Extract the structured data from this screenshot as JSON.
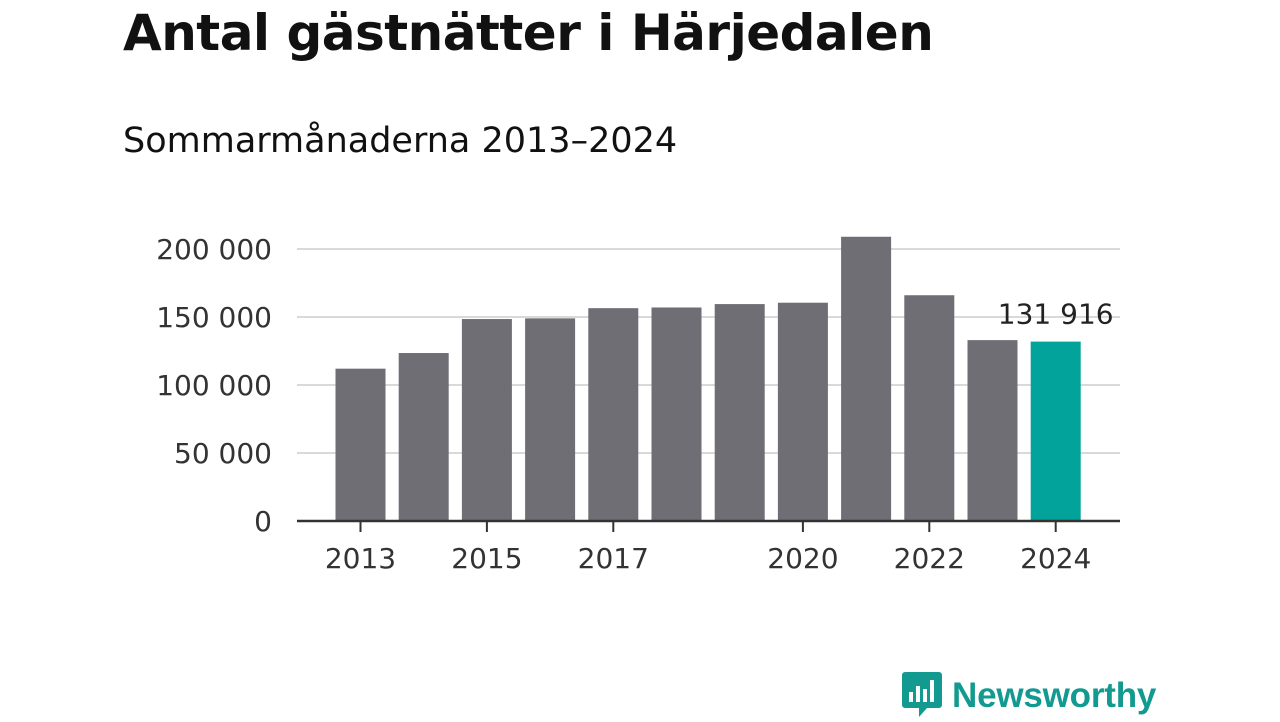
{
  "header": {
    "title": "Antal gästnätter i Härjedalen",
    "subtitle": "Sommarmånaderna 2013–2024"
  },
  "brand": {
    "name": "Newsworthy",
    "color": "#139a90",
    "icon": "chart-speech-bubble-icon"
  },
  "colors": {
    "bar": "#6f6e75",
    "highlight": "#01a39a",
    "grid": "#d9d9d9",
    "axis": "#333333"
  },
  "chart_data": {
    "type": "bar",
    "categories": [
      "2013",
      "2014",
      "2015",
      "2016",
      "2017",
      "2018",
      "2019",
      "2020",
      "2021",
      "2022",
      "2023",
      "2024"
    ],
    "values": [
      112000,
      123500,
      148500,
      149000,
      156500,
      157000,
      159500,
      160500,
      209000,
      166000,
      133000,
      131916
    ],
    "highlight_index": 11,
    "data_labels": [
      {
        "index": 11,
        "text": "131 916"
      }
    ],
    "x_tick_labels": [
      {
        "index": 0,
        "text": "2013"
      },
      {
        "index": 2,
        "text": "2015"
      },
      {
        "index": 4,
        "text": "2017"
      },
      {
        "index": 7,
        "text": "2020"
      },
      {
        "index": 9,
        "text": "2022"
      },
      {
        "index": 11,
        "text": "2024"
      }
    ],
    "y_ticks": [
      {
        "value": 0,
        "text": "0"
      },
      {
        "value": 50000,
        "text": "50 000"
      },
      {
        "value": 100000,
        "text": "100 000"
      },
      {
        "value": 150000,
        "text": "150 000"
      },
      {
        "value": 200000,
        "text": "200 000"
      }
    ],
    "ylim": [
      0,
      200000
    ],
    "grid": true,
    "title": "Antal gästnätter i Härjedalen",
    "subtitle": "Sommarmånaderna 2013–2024"
  }
}
